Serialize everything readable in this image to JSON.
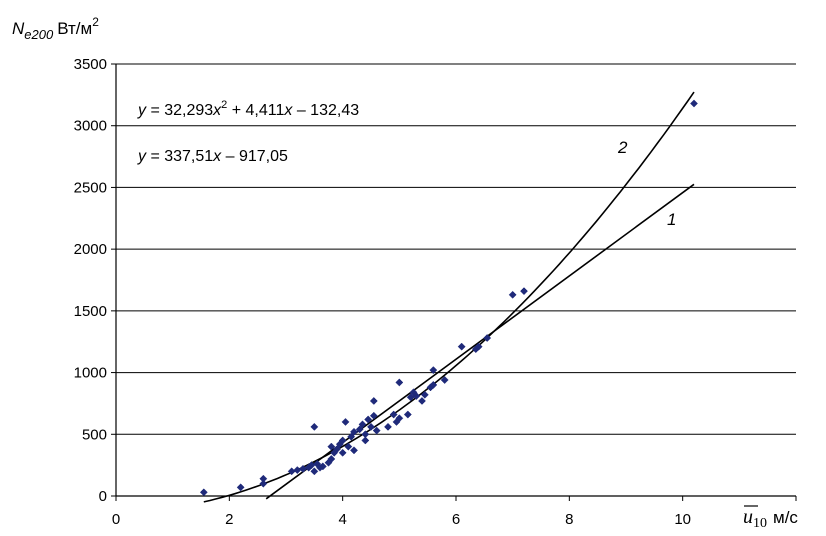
{
  "chart_data": {
    "type": "scatter",
    "title": "",
    "ylabel": {
      "symbol": "N",
      "subscript": "e200",
      "unit": "Вт/м",
      "unit_sup": "2"
    },
    "xlabel": {
      "symbol": "u",
      "subscript": "10",
      "unit": "м/с"
    },
    "xlim": [
      0,
      12
    ],
    "ylim": [
      0,
      3500
    ],
    "x_ticks": [
      "0",
      "2",
      "4",
      "6",
      "8",
      "10"
    ],
    "y_ticks": [
      "0",
      "500",
      "1000",
      "1500",
      "2000",
      "2500",
      "3000",
      "3500"
    ],
    "grid": "horizontal",
    "equations": [
      {
        "id": "poly",
        "pre": "y = 32,293",
        "x": "x",
        "sup": "2",
        "post": " + 4,411",
        "x2": "x",
        "tail": " – 132,43"
      },
      {
        "id": "linear",
        "pre": "y = 337,51",
        "x": "x",
        "tail": " – 917,05"
      }
    ],
    "series": [
      {
        "marker": "diamond",
        "color": "#1f2a7a",
        "points": [
          [
            1.55,
            30
          ],
          [
            2.2,
            70
          ],
          [
            2.6,
            100
          ],
          [
            2.6,
            140
          ],
          [
            3.1,
            200
          ],
          [
            3.2,
            210
          ],
          [
            3.3,
            220
          ],
          [
            3.4,
            230
          ],
          [
            3.45,
            250
          ],
          [
            3.5,
            200
          ],
          [
            3.5,
            560
          ],
          [
            3.55,
            260
          ],
          [
            3.6,
            230
          ],
          [
            3.65,
            240
          ],
          [
            3.75,
            270
          ],
          [
            3.8,
            300
          ],
          [
            3.8,
            400
          ],
          [
            3.85,
            350
          ],
          [
            3.9,
            380
          ],
          [
            3.95,
            420
          ],
          [
            4.0,
            350
          ],
          [
            4.0,
            450
          ],
          [
            4.05,
            600
          ],
          [
            4.1,
            400
          ],
          [
            4.15,
            480
          ],
          [
            4.2,
            370
          ],
          [
            4.2,
            520
          ],
          [
            4.3,
            540
          ],
          [
            4.35,
            580
          ],
          [
            4.4,
            450
          ],
          [
            4.4,
            500
          ],
          [
            4.45,
            620
          ],
          [
            4.5,
            560
          ],
          [
            4.55,
            650
          ],
          [
            4.55,
            770
          ],
          [
            4.6,
            530
          ],
          [
            4.8,
            560
          ],
          [
            4.9,
            660
          ],
          [
            4.95,
            600
          ],
          [
            5.0,
            630
          ],
          [
            5.0,
            920
          ],
          [
            5.15,
            660
          ],
          [
            5.2,
            800
          ],
          [
            5.25,
            840
          ],
          [
            5.3,
            810
          ],
          [
            5.4,
            770
          ],
          [
            5.45,
            820
          ],
          [
            5.55,
            880
          ],
          [
            5.6,
            1020
          ],
          [
            5.6,
            900
          ],
          [
            5.8,
            940
          ],
          [
            6.1,
            1210
          ],
          [
            6.35,
            1190
          ],
          [
            6.4,
            1210
          ],
          [
            6.55,
            1280
          ],
          [
            7.0,
            1630
          ],
          [
            7.2,
            1660
          ],
          [
            10.2,
            3180
          ]
        ]
      }
    ],
    "curves": [
      {
        "id": "linear",
        "label": "1",
        "type": "linear",
        "a": 337.51,
        "b": -917.05,
        "x_from": 2.65,
        "x_to": 10.2
      },
      {
        "id": "poly",
        "label": "2",
        "type": "quadratic",
        "a": 32.293,
        "b": 4.411,
        "c": -132.43,
        "x_from": 1.55,
        "x_to": 10.2
      }
    ]
  }
}
